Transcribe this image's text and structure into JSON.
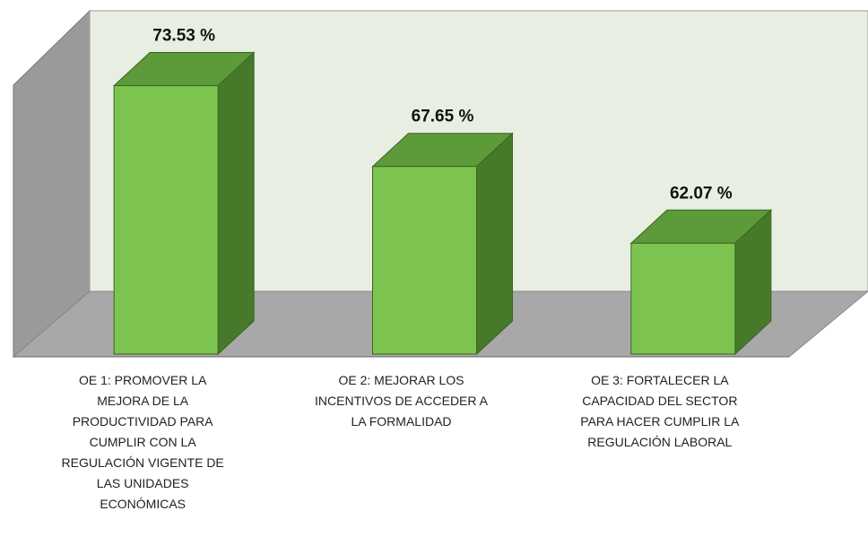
{
  "chart_data": {
    "type": "bar3d",
    "categories": [
      "OE 1: PROMOVER LA\nMEJORA DE LA\nPRODUCTIVIDAD PARA\nCUMPLIR CON LA\nREGULACIÓN VIGENTE DE\nLAS UNIDADES\nECONÓMICAS",
      "OE 2: MEJORAR LOS\nINCENTIVOS DE ACCEDER A\nLA FORMALIDAD",
      "OE 3: FORTALECER LA\nCAPACIDAD DEL SECTOR\nPARA HACER CUMPLIR LA\nREGULACIÓN LABORAL"
    ],
    "values": [
      73.53,
      67.65,
      62.07
    ],
    "value_labels": [
      "73.53 %",
      "67.65 %",
      "62.07 %"
    ],
    "color": "#7cc44f",
    "ylim": [
      54,
      78
    ]
  }
}
